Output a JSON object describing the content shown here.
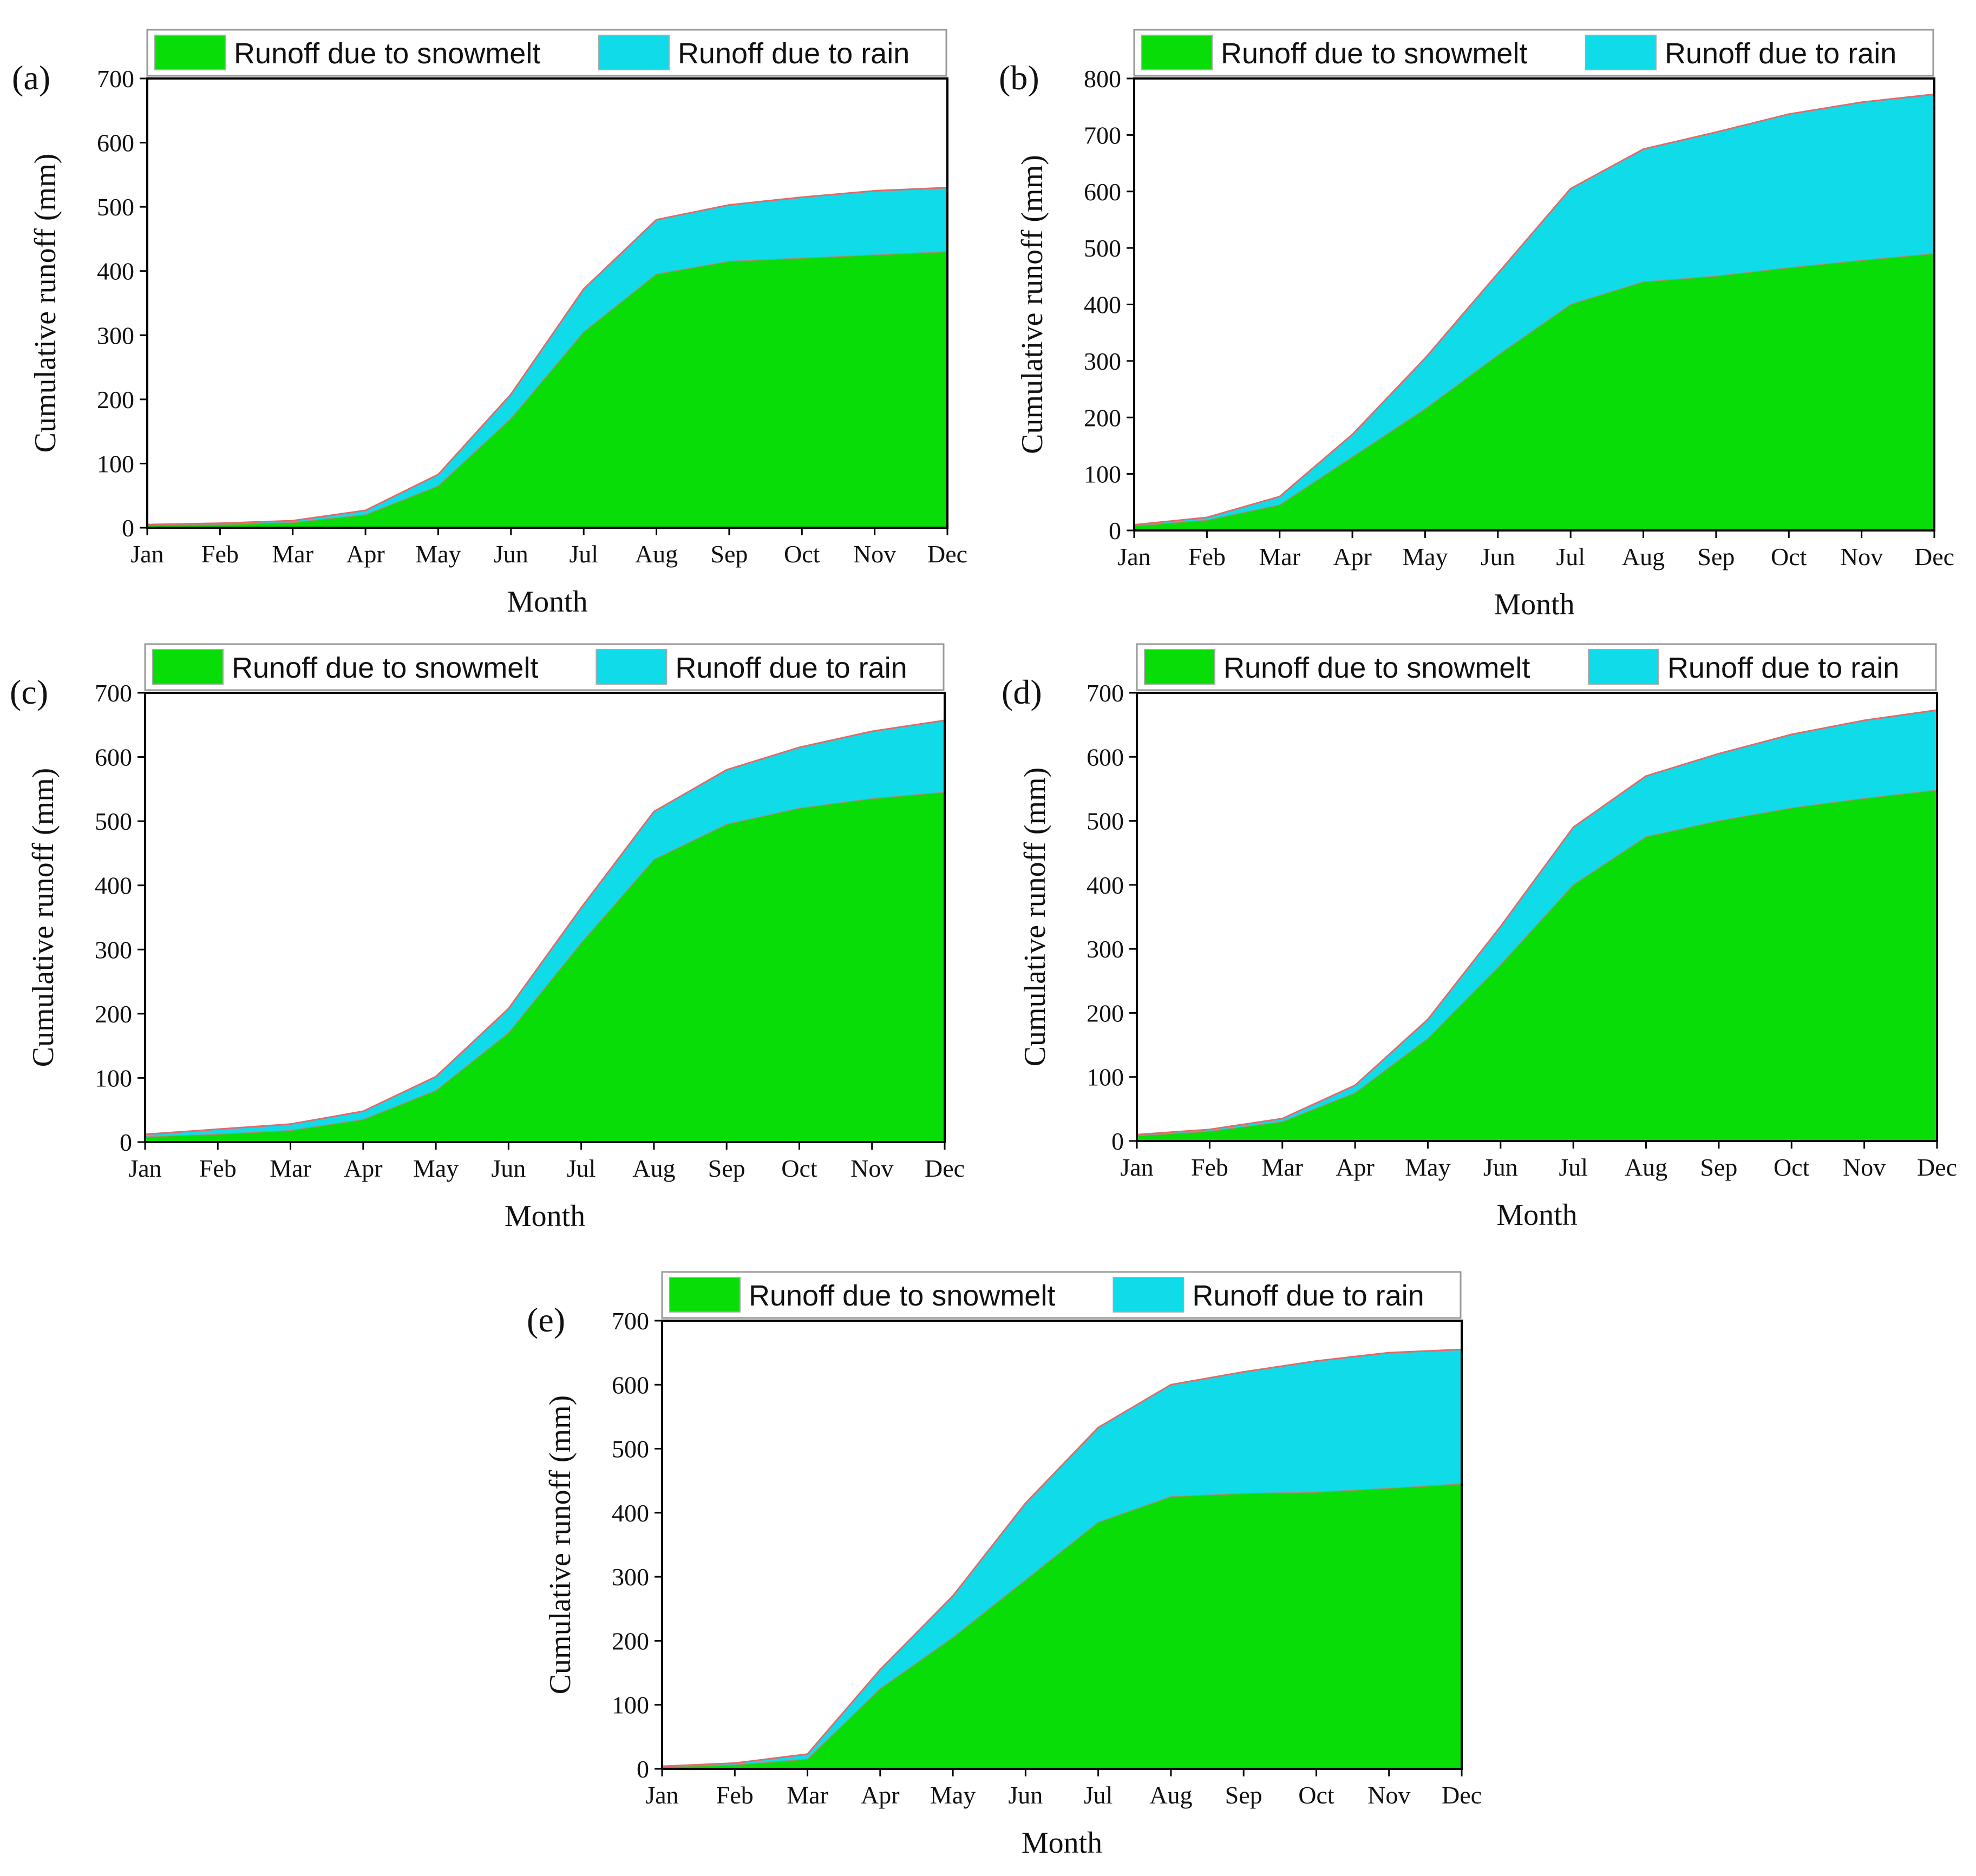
{
  "colors": {
    "snowmelt": "#08dd08",
    "rain": "#10dbe9",
    "edge": "#e06a6a",
    "axis": "#000000"
  },
  "chart_data": [
    {
      "type": "area",
      "label": "(a)",
      "categories": [
        "Jan",
        "Feb",
        "Mar",
        "Apr",
        "May",
        "Jun",
        "Jul",
        "Aug",
        "Sep",
        "Oct",
        "Nov",
        "Dec"
      ],
      "series": [
        {
          "name": "Runoff due to snowmelt",
          "values": [
            4,
            5,
            8,
            20,
            65,
            170,
            305,
            395,
            415,
            420,
            425,
            430
          ]
        },
        {
          "name": "Runoff due to rain",
          "values": [
            1,
            2,
            3,
            7,
            18,
            38,
            67,
            85,
            88,
            95,
            100,
            100
          ]
        }
      ],
      "stacked": true,
      "xlabel": "Month",
      "ylabel": "Cumulative runoff (mm)",
      "ylim": [
        0,
        700
      ],
      "yticks": [
        0,
        100,
        200,
        300,
        400,
        500,
        600,
        700
      ]
    },
    {
      "type": "area",
      "label": "(b)",
      "categories": [
        "Jan",
        "Feb",
        "Mar",
        "Apr",
        "May",
        "Jun",
        "Jul",
        "Aug",
        "Sep",
        "Oct",
        "Nov",
        "Dec"
      ],
      "series": [
        {
          "name": "Runoff due to snowmelt",
          "values": [
            8,
            18,
            45,
            130,
            215,
            310,
            400,
            440,
            450,
            465,
            478,
            490
          ]
        },
        {
          "name": "Runoff due to rain",
          "values": [
            2,
            5,
            15,
            40,
            90,
            145,
            205,
            235,
            255,
            272,
            280,
            282
          ]
        }
      ],
      "stacked": true,
      "xlabel": "Month",
      "ylabel": "Cumulative runoff (mm)",
      "ylim": [
        0,
        800
      ],
      "yticks": [
        0,
        100,
        200,
        300,
        400,
        500,
        600,
        700,
        800
      ]
    },
    {
      "type": "area",
      "label": "(c)",
      "categories": [
        "Jan",
        "Feb",
        "Mar",
        "Apr",
        "May",
        "Jun",
        "Jul",
        "Aug",
        "Sep",
        "Oct",
        "Nov",
        "Dec"
      ],
      "series": [
        {
          "name": "Runoff due to snowmelt",
          "values": [
            8,
            12,
            18,
            35,
            80,
            170,
            310,
            440,
            495,
            520,
            535,
            545
          ]
        },
        {
          "name": "Runoff due to rain",
          "values": [
            4,
            8,
            10,
            13,
            22,
            38,
            55,
            75,
            85,
            95,
            105,
            112
          ]
        }
      ],
      "stacked": true,
      "xlabel": "Month",
      "ylabel": "Cumulative runoff (mm)",
      "ylim": [
        0,
        700
      ],
      "yticks": [
        0,
        100,
        200,
        300,
        400,
        500,
        600,
        700
      ]
    },
    {
      "type": "area",
      "label": "(d)",
      "categories": [
        "Jan",
        "Feb",
        "Mar",
        "Apr",
        "May",
        "Jun",
        "Jul",
        "Aug",
        "Sep",
        "Oct",
        "Nov",
        "Dec"
      ],
      "series": [
        {
          "name": "Runoff due to snowmelt",
          "values": [
            8,
            15,
            30,
            75,
            160,
            275,
            400,
            475,
            500,
            520,
            535,
            548
          ]
        },
        {
          "name": "Runoff due to rain",
          "values": [
            2,
            3,
            5,
            12,
            30,
            60,
            90,
            95,
            105,
            115,
            122,
            125
          ]
        }
      ],
      "stacked": true,
      "xlabel": "Month",
      "ylabel": "Cumulative runoff (mm)",
      "ylim": [
        0,
        700
      ],
      "yticks": [
        0,
        100,
        200,
        300,
        400,
        500,
        600,
        700
      ]
    },
    {
      "type": "area",
      "label": "(e)",
      "categories": [
        "Jan",
        "Feb",
        "Mar",
        "Apr",
        "May",
        "Jun",
        "Jul",
        "Aug",
        "Sep",
        "Oct",
        "Nov",
        "Dec"
      ],
      "series": [
        {
          "name": "Runoff due to snowmelt",
          "values": [
            3,
            6,
            15,
            125,
            205,
            295,
            385,
            425,
            430,
            432,
            438,
            445
          ]
        },
        {
          "name": "Runoff due to rain",
          "values": [
            1,
            3,
            8,
            30,
            65,
            120,
            148,
            175,
            190,
            205,
            212,
            210
          ]
        }
      ],
      "stacked": true,
      "xlabel": "Month",
      "ylabel": "Cumulative runoff (mm)",
      "ylim": [
        0,
        700
      ],
      "yticks": [
        0,
        100,
        200,
        300,
        400,
        500,
        600,
        700
      ]
    }
  ]
}
